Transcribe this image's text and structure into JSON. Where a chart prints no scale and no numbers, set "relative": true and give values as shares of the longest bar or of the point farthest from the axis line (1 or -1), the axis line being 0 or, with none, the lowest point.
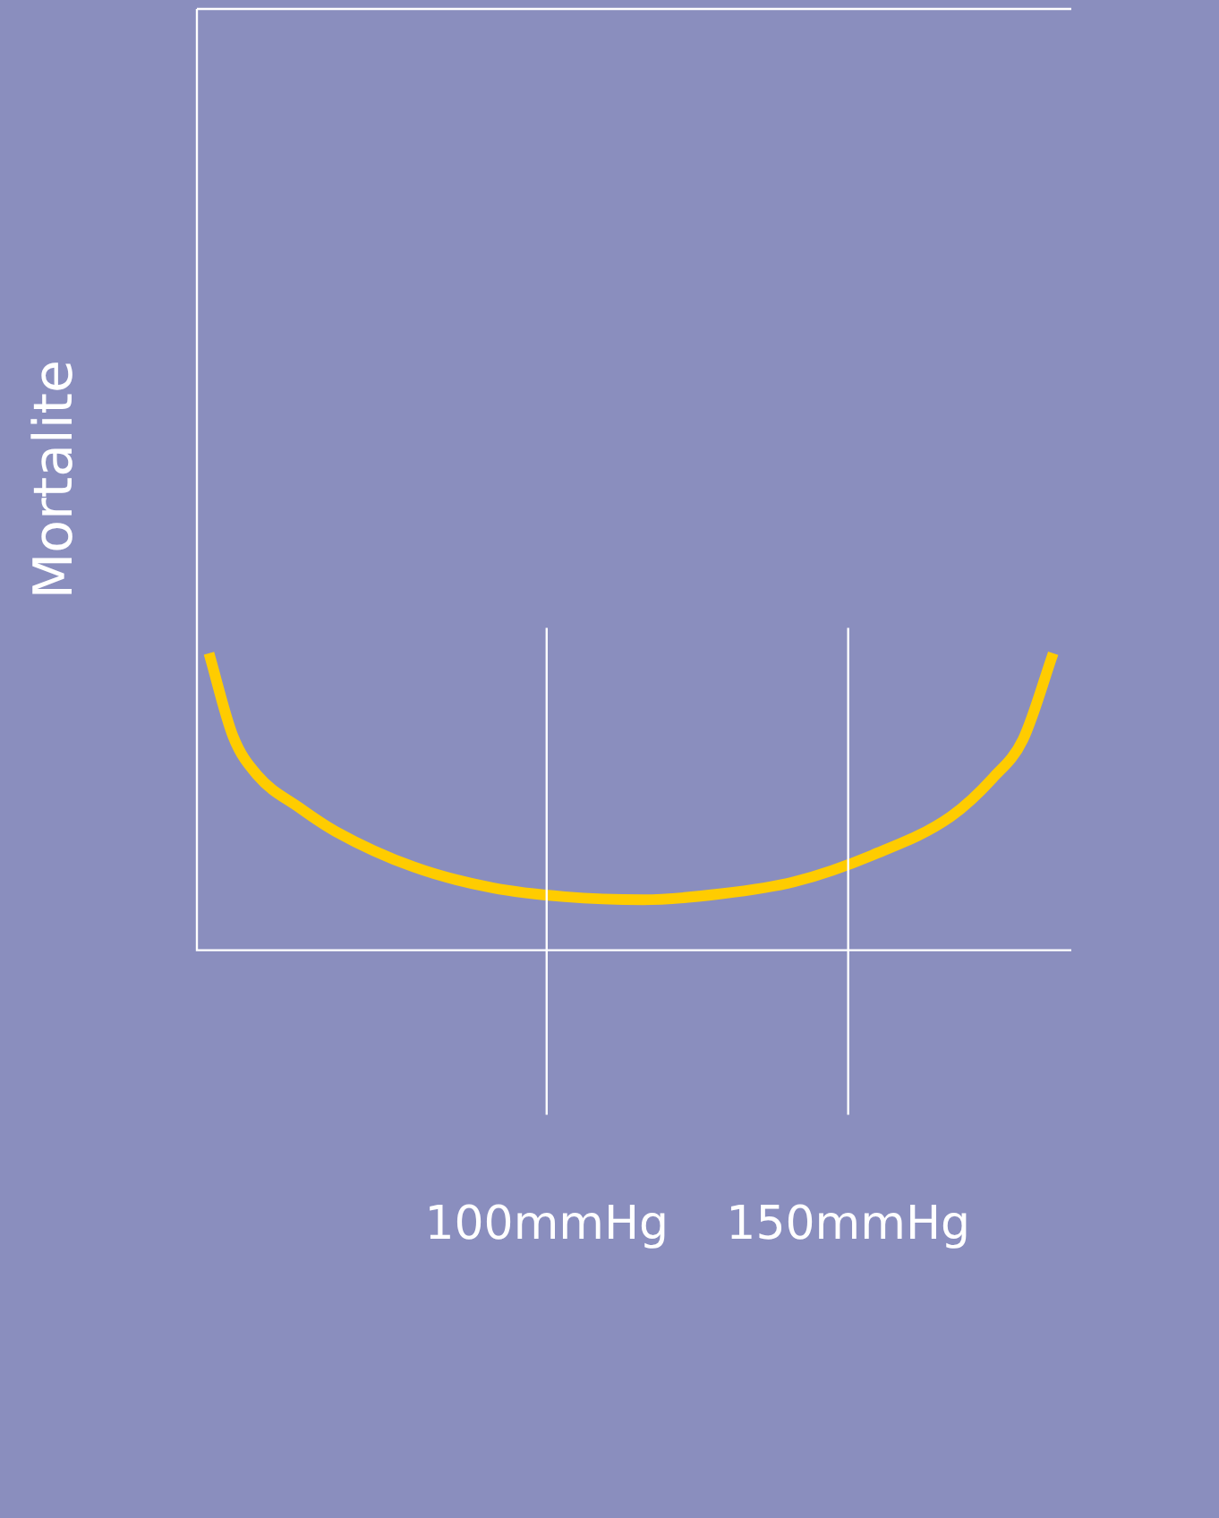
{
  "chart_data": {
    "type": "line",
    "ylabel": "Mortalite",
    "relative": true,
    "x": [
      44,
      48,
      52,
      59,
      65,
      78,
      91,
      103,
      116,
      129,
      141,
      154,
      167,
      174,
      179,
      184
    ],
    "xlim": [
      42,
      187
    ],
    "xticks": [
      {
        "value": 100,
        "label": "100mmHg"
      },
      {
        "value": 150,
        "label": "150mmHg"
      }
    ],
    "series": [
      {
        "color": "#ffcc00",
        "values": [
          1.0,
          0.72,
          0.59,
          0.48,
          0.4,
          0.28,
          0.21,
          0.18,
          0.17,
          0.19,
          0.23,
          0.32,
          0.45,
          0.58,
          0.71,
          1.0
        ]
      }
    ],
    "ref_lines": [
      {
        "axis": "x",
        "value": 100,
        "color": "#ffffff"
      },
      {
        "axis": "x",
        "value": 150,
        "color": "#ffffff"
      }
    ],
    "grid": false,
    "legend": false,
    "marker": "none",
    "line_style": "solid"
  }
}
